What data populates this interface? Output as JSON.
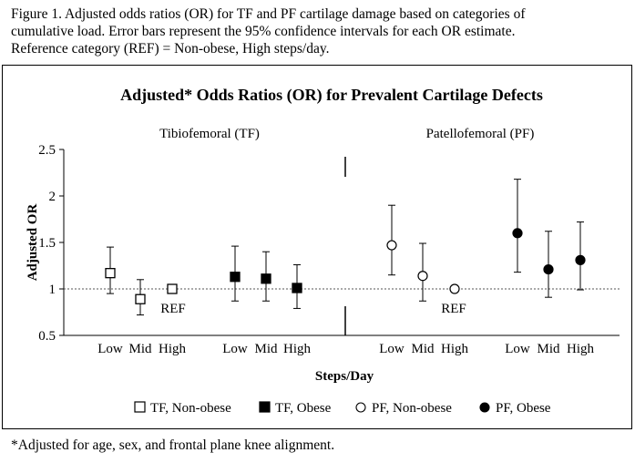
{
  "caption": {
    "line1": "Figure 1. Adjusted odds ratios (OR) for TF and PF cartilage damage based on categories of",
    "line2": "cumulative load. Error bars represent the 95% confidence intervals for each OR estimate.",
    "line3": "Reference category (REF) = Non-obese, High steps/day."
  },
  "footnote": "*Adjusted for age, sex, and frontal plane knee alignment.",
  "chart_data": {
    "type": "scatter",
    "title": "Adjusted* Odds Ratios (OR) for Prevalent Cartilage Defects",
    "xlabel": "Steps/Day",
    "ylabel": "Adjusted OR",
    "ylim": [
      0.5,
      2.5
    ],
    "yticks": [
      "0.5",
      "1",
      "1.5",
      "2",
      "2.5"
    ],
    "reference_line": 1,
    "reference_label": "REF",
    "grid": false,
    "legend_position": "bottom",
    "panels": [
      {
        "name": "Tibiofemoral (TF)"
      },
      {
        "name": "Patellofemoral (PF)"
      }
    ],
    "series": [
      {
        "name": "TF, Non-obese",
        "panel": 0,
        "marker": "open-square",
        "categories": [
          "Low",
          "Mid",
          "High"
        ],
        "values": [
          1.17,
          0.89,
          1.0
        ],
        "ci_low": [
          0.95,
          0.72,
          null
        ],
        "ci_high": [
          1.45,
          1.1,
          null
        ]
      },
      {
        "name": "TF, Obese",
        "panel": 0,
        "marker": "filled-square",
        "categories": [
          "Low",
          "Mid",
          "High"
        ],
        "values": [
          1.13,
          1.11,
          1.01
        ],
        "ci_low": [
          0.87,
          0.87,
          0.79
        ],
        "ci_high": [
          1.46,
          1.4,
          1.26
        ]
      },
      {
        "name": "PF, Non-obese",
        "panel": 1,
        "marker": "open-circle",
        "categories": [
          "Low",
          "Mid",
          "High"
        ],
        "values": [
          1.47,
          1.14,
          1.0
        ],
        "ci_low": [
          1.15,
          0.87,
          null
        ],
        "ci_high": [
          1.9,
          1.49,
          null
        ]
      },
      {
        "name": "PF, Obese",
        "panel": 1,
        "marker": "filled-circle",
        "categories": [
          "Low",
          "Mid",
          "High"
        ],
        "values": [
          1.6,
          1.21,
          1.31
        ],
        "ci_low": [
          1.18,
          0.91,
          0.99
        ],
        "ci_high": [
          2.18,
          1.62,
          1.72
        ]
      }
    ]
  }
}
